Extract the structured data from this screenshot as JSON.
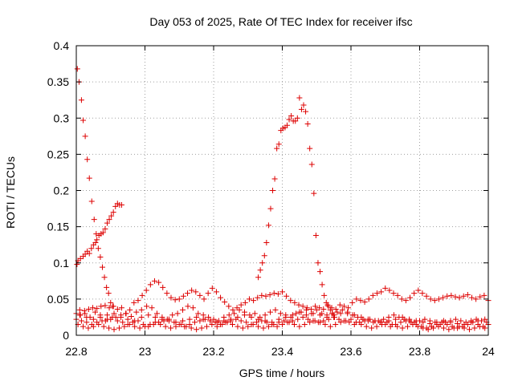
{
  "chart_data": {
    "type": "scatter",
    "title": "Day 053 of 2025, Rate Of TEC Index for receiver ifsc",
    "xlabel": "GPS time / hours",
    "ylabel": "ROTI / TECUs",
    "xlim": [
      22.8,
      24
    ],
    "ylim": [
      0,
      0.4
    ],
    "x_ticks": [
      22.8,
      23,
      23.2,
      23.4,
      23.6,
      23.8,
      24
    ],
    "y_ticks": [
      0,
      0.05,
      0.1,
      0.15,
      0.2,
      0.25,
      0.3,
      0.35,
      0.4
    ],
    "x_tick_labels": [
      "22.8",
      "23",
      "23.2",
      "23.4",
      "23.6",
      "23.8",
      "24"
    ],
    "y_tick_labels": [
      "0",
      "0.05",
      "0.1",
      "0.15",
      "0.2",
      "0.25",
      "0.3",
      "0.35",
      "0.4"
    ],
    "grid": true,
    "marker": "+",
    "color": "#dd0000",
    "series": [
      {
        "x": [
          22.802,
          22.805,
          22.812,
          22.82,
          22.826,
          22.832,
          22.838,
          22.844,
          22.85,
          22.856,
          22.86,
          22.866,
          22.872,
          22.878,
          22.884,
          22.89,
          22.896,
          22.902,
          22.908,
          22.914,
          22.92,
          22.926,
          22.932
        ],
        "y": [
          0.098,
          0.103,
          0.106,
          0.109,
          0.112,
          0.116,
          0.113,
          0.12,
          0.125,
          0.128,
          0.132,
          0.138,
          0.14,
          0.142,
          0.147,
          0.155,
          0.16,
          0.165,
          0.17,
          0.178,
          0.182,
          0.18,
          0.18
        ]
      },
      {
        "x": [
          22.803,
          22.808,
          22.815,
          22.82,
          22.826,
          22.832,
          22.838,
          22.845,
          22.852,
          22.858,
          22.864,
          22.87,
          22.876,
          22.882,
          22.888,
          22.894,
          22.9,
          22.906
        ],
        "y": [
          0.368,
          0.35,
          0.325,
          0.297,
          0.275,
          0.243,
          0.217,
          0.185,
          0.16,
          0.14,
          0.12,
          0.108,
          0.094,
          0.08,
          0.066,
          0.058,
          0.045,
          0.04
        ]
      },
      {
        "x": [
          23.33,
          23.336,
          23.342,
          23.348,
          23.354,
          23.36,
          23.366,
          23.372,
          23.378,
          23.384,
          23.39,
          23.396,
          23.402,
          23.408,
          23.414,
          23.42,
          23.426,
          23.432,
          23.438,
          23.444,
          23.45,
          23.456,
          23.462,
          23.468,
          23.474,
          23.48,
          23.486,
          23.492,
          23.498,
          23.504,
          23.51,
          23.516,
          23.522,
          23.528,
          23.534,
          23.54,
          23.546,
          23.552
        ],
        "y": [
          0.08,
          0.09,
          0.1,
          0.11,
          0.128,
          0.152,
          0.175,
          0.2,
          0.216,
          0.258,
          0.264,
          0.283,
          0.286,
          0.287,
          0.29,
          0.298,
          0.303,
          0.296,
          0.296,
          0.3,
          0.328,
          0.312,
          0.318,
          0.309,
          0.292,
          0.258,
          0.236,
          0.196,
          0.138,
          0.1,
          0.088,
          0.07,
          0.055,
          0.045,
          0.04,
          0.035,
          0.03,
          0.025
        ]
      },
      {
        "x": [
          22.8,
          22.812,
          22.824,
          22.836,
          22.848,
          22.86,
          22.872,
          22.884,
          22.896,
          22.908,
          22.92,
          22.932,
          22.944,
          22.956,
          22.968,
          22.98,
          22.992,
          23.004,
          23.016,
          23.028,
          23.04,
          23.052,
          23.064,
          23.076,
          23.088,
          23.1,
          23.112,
          23.124,
          23.136,
          23.148,
          23.16,
          23.172,
          23.184,
          23.196,
          23.208,
          23.22,
          23.232,
          23.244,
          23.256,
          23.268,
          23.28,
          23.292,
          23.304,
          23.316,
          23.328,
          23.34,
          23.352,
          23.364,
          23.376,
          23.388,
          23.4,
          23.412,
          23.424,
          23.436,
          23.448,
          23.46,
          23.472,
          23.484,
          23.496,
          23.508,
          23.52,
          23.532,
          23.544,
          23.556,
          23.568,
          23.58,
          23.592,
          23.604,
          23.616,
          23.628,
          23.64,
          23.652,
          23.664,
          23.676,
          23.688,
          23.7,
          23.712,
          23.724,
          23.736,
          23.748,
          23.76,
          23.772,
          23.784,
          23.796,
          23.808,
          23.82,
          23.832,
          23.844,
          23.856,
          23.868,
          23.88,
          23.892,
          23.904,
          23.916,
          23.928,
          23.94,
          23.952,
          23.964,
          23.976,
          23.988,
          24.0
        ],
        "y": [
          0.03,
          0.028,
          0.034,
          0.036,
          0.038,
          0.037,
          0.04,
          0.041,
          0.038,
          0.04,
          0.036,
          0.038,
          0.03,
          0.035,
          0.045,
          0.048,
          0.055,
          0.062,
          0.07,
          0.075,
          0.073,
          0.066,
          0.058,
          0.052,
          0.049,
          0.05,
          0.054,
          0.058,
          0.062,
          0.06,
          0.055,
          0.05,
          0.058,
          0.065,
          0.06,
          0.052,
          0.046,
          0.04,
          0.035,
          0.038,
          0.042,
          0.045,
          0.05,
          0.048,
          0.052,
          0.055,
          0.054,
          0.056,
          0.058,
          0.057,
          0.06,
          0.054,
          0.048,
          0.045,
          0.042,
          0.04,
          0.038,
          0.036,
          0.04,
          0.038,
          0.036,
          0.042,
          0.038,
          0.036,
          0.042,
          0.04,
          0.038,
          0.045,
          0.05,
          0.048,
          0.046,
          0.05,
          0.055,
          0.058,
          0.06,
          0.065,
          0.062,
          0.058,
          0.055,
          0.05,
          0.048,
          0.052,
          0.058,
          0.062,
          0.058,
          0.054,
          0.05,
          0.048,
          0.05,
          0.052,
          0.054,
          0.055,
          0.053,
          0.052,
          0.054,
          0.056,
          0.052,
          0.05,
          0.053,
          0.055,
          0.048
        ]
      },
      {
        "x": [
          22.81,
          22.825,
          22.84,
          22.855,
          22.87,
          22.885,
          22.9,
          22.915,
          22.93,
          22.945,
          22.96,
          22.975,
          22.99,
          23.005,
          23.02,
          23.035,
          23.05,
          23.065,
          23.08,
          23.095,
          23.11,
          23.125,
          23.14,
          23.155,
          23.17,
          23.185,
          23.2,
          23.215,
          23.23,
          23.245,
          23.26,
          23.275,
          23.29,
          23.305,
          23.32,
          23.335,
          23.35,
          23.365,
          23.38,
          23.395,
          23.41,
          23.425,
          23.44,
          23.455,
          23.47,
          23.485,
          23.5,
          23.515,
          23.53,
          23.545,
          23.56,
          23.575,
          23.59,
          23.605,
          23.62,
          23.635,
          23.65,
          23.665,
          23.68,
          23.695,
          23.71,
          23.725,
          23.74,
          23.755,
          23.77,
          23.785,
          23.8,
          23.815,
          23.83,
          23.845,
          23.86,
          23.875,
          23.89,
          23.905,
          23.92,
          23.935,
          23.95,
          23.965,
          23.98,
          23.995
        ],
        "y": [
          0.035,
          0.03,
          0.025,
          0.032,
          0.028,
          0.02,
          0.022,
          0.025,
          0.028,
          0.03,
          0.026,
          0.032,
          0.035,
          0.04,
          0.038,
          0.03,
          0.025,
          0.022,
          0.028,
          0.03,
          0.035,
          0.04,
          0.038,
          0.03,
          0.028,
          0.025,
          0.022,
          0.02,
          0.025,
          0.028,
          0.03,
          0.035,
          0.032,
          0.028,
          0.03,
          0.025,
          0.028,
          0.032,
          0.035,
          0.03,
          0.028,
          0.025,
          0.03,
          0.032,
          0.028,
          0.03,
          0.035,
          0.03,
          0.028,
          0.03,
          0.032,
          0.035,
          0.03,
          0.028,
          0.025,
          0.022,
          0.02,
          0.018,
          0.02,
          0.022,
          0.025,
          0.028,
          0.025,
          0.022,
          0.02,
          0.018,
          0.02,
          0.022,
          0.02,
          0.018,
          0.015,
          0.018,
          0.02,
          0.022,
          0.02,
          0.018,
          0.02,
          0.022,
          0.02,
          0.018
        ]
      },
      {
        "x": [
          22.8,
          22.815,
          22.83,
          22.845,
          22.86,
          22.875,
          22.89,
          22.905,
          22.92,
          22.935,
          22.95,
          22.965,
          22.98,
          22.995,
          23.01,
          23.025,
          23.04,
          23.055,
          23.07,
          23.085,
          23.1,
          23.115,
          23.13,
          23.145,
          23.16,
          23.175,
          23.19,
          23.205,
          23.22,
          23.235,
          23.25,
          23.265,
          23.28,
          23.295,
          23.31,
          23.325,
          23.34,
          23.355,
          23.37,
          23.385,
          23.4,
          23.415,
          23.43,
          23.445,
          23.46,
          23.475,
          23.49,
          23.505,
          23.52,
          23.535,
          23.55,
          23.565,
          23.58,
          23.595,
          23.61,
          23.625,
          23.64,
          23.655,
          23.67,
          23.685,
          23.7,
          23.715,
          23.73,
          23.745,
          23.76,
          23.775,
          23.79,
          23.805,
          23.82,
          23.835,
          23.85,
          23.865,
          23.88,
          23.895,
          23.91,
          23.925,
          23.94,
          23.955,
          23.97,
          23.985,
          24.0
        ],
        "y": [
          0.022,
          0.02,
          0.018,
          0.015,
          0.018,
          0.02,
          0.022,
          0.025,
          0.02,
          0.018,
          0.015,
          0.018,
          0.02,
          0.015,
          0.012,
          0.015,
          0.018,
          0.02,
          0.022,
          0.018,
          0.015,
          0.012,
          0.015,
          0.018,
          0.02,
          0.022,
          0.02,
          0.018,
          0.015,
          0.018,
          0.02,
          0.022,
          0.02,
          0.018,
          0.015,
          0.018,
          0.02,
          0.018,
          0.015,
          0.012,
          0.015,
          0.018,
          0.02,
          0.022,
          0.025,
          0.022,
          0.02,
          0.018,
          0.02,
          0.022,
          0.025,
          0.022,
          0.02,
          0.018,
          0.015,
          0.018,
          0.02,
          0.022,
          0.02,
          0.018,
          0.015,
          0.012,
          0.015,
          0.018,
          0.02,
          0.018,
          0.015,
          0.012,
          0.01,
          0.012,
          0.015,
          0.018,
          0.015,
          0.012,
          0.01,
          0.012,
          0.015,
          0.018,
          0.015,
          0.012,
          0.015
        ]
      },
      {
        "x": [
          22.805,
          22.82,
          22.835,
          22.85,
          22.865,
          22.88,
          22.895,
          22.91,
          22.925,
          22.94,
          22.955,
          22.97,
          22.985,
          23.0,
          23.015,
          23.03,
          23.045,
          23.06,
          23.075,
          23.09,
          23.105,
          23.12,
          23.135,
          23.15,
          23.165,
          23.18,
          23.195,
          23.21,
          23.225,
          23.24,
          23.255,
          23.27,
          23.285,
          23.3,
          23.315,
          23.33,
          23.345,
          23.36,
          23.375,
          23.39,
          23.405,
          23.42,
          23.435,
          23.45,
          23.465,
          23.48,
          23.495,
          23.51,
          23.525,
          23.54,
          23.555,
          23.57,
          23.585,
          23.6,
          23.615,
          23.63,
          23.645,
          23.66,
          23.675,
          23.69,
          23.705,
          23.72,
          23.735,
          23.75,
          23.765,
          23.78,
          23.795,
          23.81,
          23.825,
          23.84,
          23.855,
          23.87,
          23.885,
          23.9,
          23.915,
          23.93,
          23.945,
          23.96,
          23.975,
          23.99
        ],
        "y": [
          0.015,
          0.012,
          0.01,
          0.012,
          0.015,
          0.012,
          0.01,
          0.008,
          0.01,
          0.012,
          0.015,
          0.012,
          0.01,
          0.012,
          0.015,
          0.018,
          0.015,
          0.012,
          0.01,
          0.012,
          0.015,
          0.012,
          0.01,
          0.008,
          0.01,
          0.012,
          0.015,
          0.012,
          0.015,
          0.018,
          0.015,
          0.012,
          0.01,
          0.012,
          0.015,
          0.012,
          0.01,
          0.012,
          0.015,
          0.018,
          0.02,
          0.018,
          0.015,
          0.012,
          0.015,
          0.018,
          0.02,
          0.018,
          0.015,
          0.012,
          0.015,
          0.018,
          0.02,
          0.022,
          0.018,
          0.015,
          0.012,
          0.01,
          0.012,
          0.015,
          0.018,
          0.015,
          0.012,
          0.01,
          0.012,
          0.015,
          0.012,
          0.01,
          0.008,
          0.01,
          0.012,
          0.01,
          0.008,
          0.01,
          0.012,
          0.01,
          0.008,
          0.01,
          0.012,
          0.01
        ]
      },
      {
        "x": [
          22.81,
          22.83,
          22.85,
          22.87,
          22.89,
          22.91,
          22.93,
          22.95,
          22.97,
          22.99,
          23.01,
          23.03,
          23.05,
          23.07,
          23.09,
          23.11,
          23.13,
          23.15,
          23.17,
          23.19,
          23.21,
          23.23,
          23.25,
          23.27,
          23.29,
          23.31,
          23.33,
          23.35,
          23.37,
          23.39,
          23.41,
          23.43,
          23.45,
          23.47,
          23.49,
          23.51,
          23.53,
          23.55,
          23.57,
          23.59,
          23.61,
          23.63,
          23.65,
          23.67,
          23.69,
          23.71,
          23.73,
          23.75,
          23.77,
          23.79,
          23.81,
          23.83,
          23.85,
          23.87,
          23.89,
          23.91,
          23.93,
          23.95,
          23.97,
          23.99
        ],
        "y": [
          0.028,
          0.025,
          0.022,
          0.025,
          0.028,
          0.03,
          0.025,
          0.022,
          0.02,
          0.025,
          0.028,
          0.025,
          0.022,
          0.02,
          0.018,
          0.02,
          0.022,
          0.025,
          0.022,
          0.02,
          0.018,
          0.02,
          0.022,
          0.025,
          0.028,
          0.025,
          0.022,
          0.02,
          0.018,
          0.022,
          0.025,
          0.028,
          0.032,
          0.035,
          0.03,
          0.028,
          0.025,
          0.028,
          0.03,
          0.032,
          0.028,
          0.025,
          0.022,
          0.02,
          0.018,
          0.02,
          0.022,
          0.025,
          0.022,
          0.02,
          0.018,
          0.016,
          0.018,
          0.02,
          0.018,
          0.016,
          0.015,
          0.018,
          0.02,
          0.022
        ]
      }
    ]
  }
}
